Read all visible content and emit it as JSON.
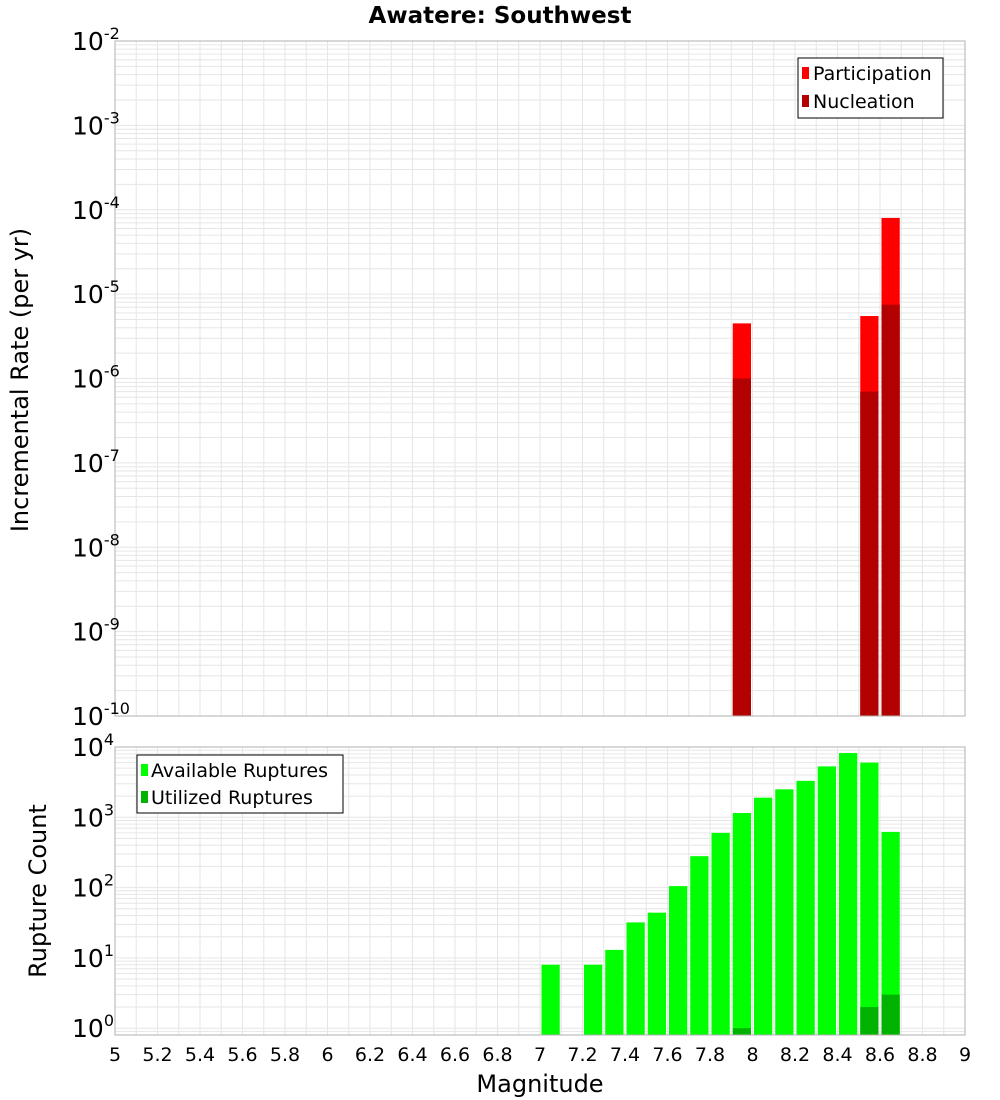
{
  "title": "Awatere: Southwest",
  "xlabel": "Magnitude",
  "colors": {
    "participation": "#ff0000",
    "nucleation": "#b30000",
    "available": "#00ff00",
    "utilized": "#00b300",
    "grid": "#e6e6e6",
    "frame": "#b0b0b0"
  },
  "chart_data": [
    {
      "type": "bar",
      "panel": "rate",
      "title": "Awatere: Southwest",
      "ylabel": "Incremental Rate (per yr)",
      "xlabel": "Magnitude",
      "xlim": [
        5,
        9
      ],
      "ylim": [
        1e-10,
        0.01
      ],
      "yscale": "log",
      "grid": true,
      "legend_position": "top-right",
      "ytick_exponents": [
        "-10",
        "-9",
        "-8",
        "-7",
        "-6",
        "-5",
        "-4",
        "-3",
        "-2"
      ],
      "series": [
        {
          "name": "Participation",
          "color": "#ff0000",
          "points": [
            {
              "x": 7.95,
              "y": 4.5e-06
            },
            {
              "x": 8.55,
              "y": 5.5e-06
            },
            {
              "x": 8.65,
              "y": 8e-05
            }
          ]
        },
        {
          "name": "Nucleation",
          "color": "#b30000",
          "points": [
            {
              "x": 7.95,
              "y": 1e-06
            },
            {
              "x": 8.55,
              "y": 7e-07
            },
            {
              "x": 8.65,
              "y": 7.5e-06
            }
          ]
        }
      ]
    },
    {
      "type": "bar",
      "panel": "count",
      "ylabel": "Rupture Count",
      "xlabel": "Magnitude",
      "xlim": [
        5,
        9
      ],
      "ylim": [
        0.8,
        10000
      ],
      "yscale": "log",
      "grid": true,
      "legend_position": "top-left",
      "ytick_exponents": [
        "0",
        "1",
        "2",
        "3",
        "4"
      ],
      "xticks": [
        "5",
        "5.2",
        "5.4",
        "5.6",
        "5.8",
        "6",
        "6.2",
        "6.4",
        "6.6",
        "6.8",
        "7",
        "7.2",
        "7.4",
        "7.6",
        "7.8",
        "8",
        "8.2",
        "8.4",
        "8.6",
        "8.8",
        "9"
      ],
      "series": [
        {
          "name": "Available Ruptures",
          "color": "#00ff00",
          "points": [
            {
              "x": 7.05,
              "y": 8
            },
            {
              "x": 7.25,
              "y": 8
            },
            {
              "x": 7.35,
              "y": 13
            },
            {
              "x": 7.45,
              "y": 32
            },
            {
              "x": 7.55,
              "y": 44
            },
            {
              "x": 7.65,
              "y": 105
            },
            {
              "x": 7.75,
              "y": 280
            },
            {
              "x": 7.85,
              "y": 600
            },
            {
              "x": 7.95,
              "y": 1150
            },
            {
              "x": 8.05,
              "y": 1900
            },
            {
              "x": 8.15,
              "y": 2500
            },
            {
              "x": 8.25,
              "y": 3300
            },
            {
              "x": 8.35,
              "y": 5300
            },
            {
              "x": 8.45,
              "y": 8200
            },
            {
              "x": 8.55,
              "y": 6000
            },
            {
              "x": 8.65,
              "y": 620
            }
          ]
        },
        {
          "name": "Utilized Ruptures",
          "color": "#00b300",
          "points": [
            {
              "x": 7.95,
              "y": 1
            },
            {
              "x": 8.55,
              "y": 2
            },
            {
              "x": 8.65,
              "y": 3
            }
          ]
        }
      ]
    }
  ]
}
